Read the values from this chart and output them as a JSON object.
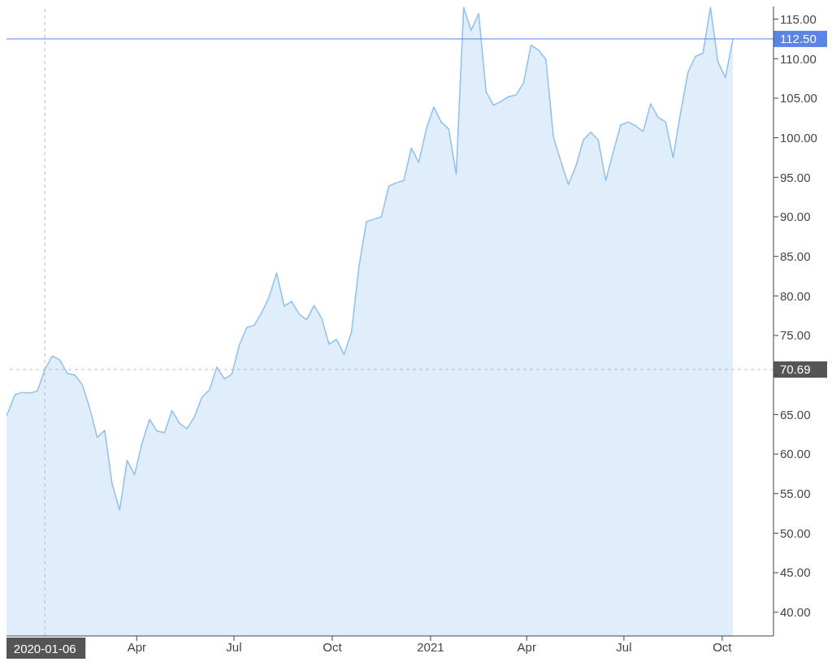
{
  "chart_data": {
    "type": "area",
    "x": [
      "2019-11-25",
      "2019-12-02",
      "2019-12-09",
      "2019-12-16",
      "2019-12-23",
      "2019-12-30",
      "2020-01-06",
      "2020-01-13",
      "2020-01-20",
      "2020-01-27",
      "2020-02-03",
      "2020-02-10",
      "2020-02-17",
      "2020-02-24",
      "2020-03-02",
      "2020-03-09",
      "2020-03-16",
      "2020-03-23",
      "2020-03-30",
      "2020-04-06",
      "2020-04-13",
      "2020-04-20",
      "2020-04-27",
      "2020-05-04",
      "2020-05-11",
      "2020-05-18",
      "2020-05-25",
      "2020-06-01",
      "2020-06-08",
      "2020-06-15",
      "2020-06-22",
      "2020-06-29",
      "2020-07-06",
      "2020-07-13",
      "2020-07-20",
      "2020-07-27",
      "2020-08-03",
      "2020-08-10",
      "2020-08-17",
      "2020-08-24",
      "2020-08-31",
      "2020-09-07",
      "2020-09-14",
      "2020-09-21",
      "2020-09-28",
      "2020-10-05",
      "2020-10-12",
      "2020-10-19",
      "2020-10-26",
      "2020-11-02",
      "2020-11-09",
      "2020-11-16",
      "2020-11-23",
      "2020-11-30",
      "2020-12-07",
      "2020-12-14",
      "2020-12-21",
      "2020-12-28",
      "2021-01-04",
      "2021-01-11",
      "2021-01-18",
      "2021-01-25",
      "2021-02-01",
      "2021-02-08",
      "2021-02-15",
      "2021-02-22",
      "2021-03-01",
      "2021-03-08",
      "2021-03-15",
      "2021-03-22",
      "2021-03-29",
      "2021-04-05",
      "2021-04-12",
      "2021-04-19",
      "2021-04-26",
      "2021-05-03",
      "2021-05-10",
      "2021-05-17",
      "2021-05-24",
      "2021-05-31",
      "2021-06-07",
      "2021-06-14",
      "2021-06-21",
      "2021-06-28",
      "2021-07-05",
      "2021-07-12",
      "2021-07-19",
      "2021-07-26",
      "2021-08-02",
      "2021-08-09",
      "2021-08-16",
      "2021-08-23",
      "2021-08-30",
      "2021-09-06",
      "2021-09-13",
      "2021-09-20",
      "2021-09-27",
      "2021-10-04",
      "2021-10-11"
    ],
    "series": [
      {
        "color": "#8ec0ef",
        "values": [
          63.6,
          65.1,
          67.5,
          67.8,
          67.7,
          68.0,
          70.7,
          72.4,
          71.9,
          70.2,
          70.0,
          68.8,
          65.8,
          62.1,
          63.0,
          56.2,
          52.9,
          59.2,
          57.4,
          61.4,
          64.4,
          62.9,
          62.7,
          65.5,
          63.9,
          63.2,
          64.7,
          67.2,
          68.1,
          71.0,
          69.5,
          70.1,
          73.8,
          76.0,
          76.3,
          77.9,
          79.9,
          82.9,
          78.7,
          79.3,
          77.7,
          77.0,
          78.8,
          77.2,
          73.9,
          74.5,
          72.6,
          75.4,
          83.7,
          89.4,
          89.7,
          90.0,
          93.9,
          94.3,
          94.6,
          98.7,
          96.9,
          101.1,
          103.9,
          102.0,
          101.1,
          95.4,
          116.5,
          113.6,
          115.7,
          105.8,
          104.1,
          104.6,
          105.2,
          105.4,
          106.9,
          111.7,
          111.1,
          109.9,
          100.1,
          97.0,
          94.1,
          96.4,
          99.7,
          100.7,
          99.7,
          94.6,
          98.2,
          101.6,
          102.0,
          101.5,
          100.8,
          104.3,
          102.6,
          102.0,
          97.5,
          103.1,
          108.3,
          110.3,
          110.7,
          116.5,
          109.6,
          107.6,
          112.5
        ]
      }
    ],
    "xlim": [
      "2019-11-25",
      "2021-11-18"
    ],
    "xticks": [
      {
        "value": "2020-04-01",
        "label": "Apr"
      },
      {
        "value": "2020-07-01",
        "label": "Jul"
      },
      {
        "value": "2020-10-01",
        "label": "Oct"
      },
      {
        "value": "2021-01-01",
        "label": "2021"
      },
      {
        "value": "2021-04-01",
        "label": "Apr"
      },
      {
        "value": "2021-07-01",
        "label": "Jul"
      },
      {
        "value": "2021-10-01",
        "label": "Oct"
      }
    ],
    "ylim": [
      37,
      116.6
    ],
    "yticks": [
      {
        "value": 40,
        "label": "40.00"
      },
      {
        "value": 45,
        "label": "45.00"
      },
      {
        "value": 50,
        "label": "50.00"
      },
      {
        "value": 55,
        "label": "55.00"
      },
      {
        "value": 60,
        "label": "60.00"
      },
      {
        "value": 65,
        "label": "65.00"
      },
      {
        "value": 70,
        "label": null
      },
      {
        "value": 75,
        "label": "75.00"
      },
      {
        "value": 80,
        "label": "80.00"
      },
      {
        "value": 85,
        "label": "85.00"
      },
      {
        "value": 90,
        "label": "90.00"
      },
      {
        "value": 95,
        "label": "95.00"
      },
      {
        "value": 100,
        "label": "100.00"
      },
      {
        "value": 105,
        "label": "105.00"
      },
      {
        "value": 110,
        "label": "110.00"
      },
      {
        "value": 115,
        "label": "115.00"
      }
    ],
    "ref_lines": [
      {
        "axis": "x",
        "value": "2020-01-06",
        "label": "2020-01-06",
        "color": "#bbbbbb",
        "line_style": "dashed"
      },
      {
        "axis": "y",
        "value": 70.69,
        "label": "70.69",
        "color": "#bbbbbb",
        "line_style": "dashed"
      },
      {
        "axis": "y",
        "value": 112.5,
        "label": "112.50",
        "color": "#5b84e6",
        "line_style": "solid"
      }
    ],
    "grid": false,
    "legend": false,
    "marker": "none",
    "line_style": "solid"
  }
}
